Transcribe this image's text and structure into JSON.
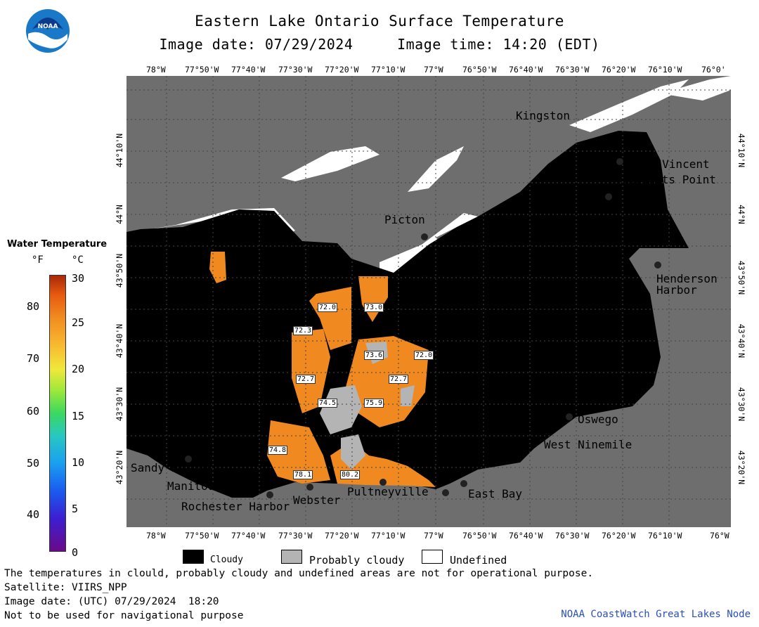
{
  "header": {
    "title": "Eastern Lake Ontario Surface Temperature",
    "subtitle": "Image date: 07/29/2024     Image time: 14:20 (EDT)",
    "logo_text": "NOAA"
  },
  "axes": {
    "lon_labels": [
      "78°W",
      "77°50'W",
      "77°40'W",
      "77°30'W",
      "77°20'W",
      "77°10'W",
      "77°W",
      "76°50'W",
      "76°40'W",
      "76°30'W",
      "76°20'W",
      "76°10'W",
      "76°W"
    ],
    "top_last_label": "76°0'",
    "lat_labels": [
      "44°10'N",
      "44°N",
      "43°50'N",
      "43°40'N",
      "43°30'N",
      "43°20'N"
    ]
  },
  "places": {
    "kingston": "Kingston",
    "cape_vincent": "Cape Vincent",
    "tibbetts_point": "Tibbetts Point",
    "picton": "Picton",
    "henderson_harbor": "Henderson Harbor",
    "oswego": "Oswego",
    "west_ninemile": "West Ninemile",
    "sandy_harbour": "Sandy Harbour",
    "manitou_beach": "Manitou Beach",
    "rochester_harbor": "Rochester Harbor",
    "webster": "Webster",
    "pultneyville": "Pultneyville",
    "east_bay": "East Bay"
  },
  "contour_labels": [
    "72.0",
    "73.0",
    "72.3",
    "73.6",
    "72.0",
    "72.7",
    "72.7",
    "74.5",
    "75.9",
    "74.8",
    "78.1",
    "80.2"
  ],
  "legend": {
    "title": "Water Temperature",
    "unit_f": "°F",
    "unit_c": "°C",
    "f_ticks": [
      "80",
      "70",
      "60",
      "50",
      "40"
    ],
    "c_ticks": [
      "30",
      "25",
      "20",
      "15",
      "10",
      "5",
      "0"
    ],
    "colors": {
      "cold": "#6a0a8a",
      "mid": "#3ad860",
      "warm": "#f08a20",
      "hot": "#a82808"
    }
  },
  "key": {
    "cloudy": "Cloudy",
    "probably_cloudy": "Probably cloudy",
    "undefined": "Undefined"
  },
  "notes": {
    "line1": "The temperatures in clould, probably cloudy and undefined areas are not for operational purpose.",
    "line2": "Satellite: VIIRS_NPP",
    "line3": "Image date: (UTC) 07/29/2024  18:20",
    "line4": "Not to be used for navigational purpose"
  },
  "credit": "NOAA CoastWatch Great Lakes Node"
}
